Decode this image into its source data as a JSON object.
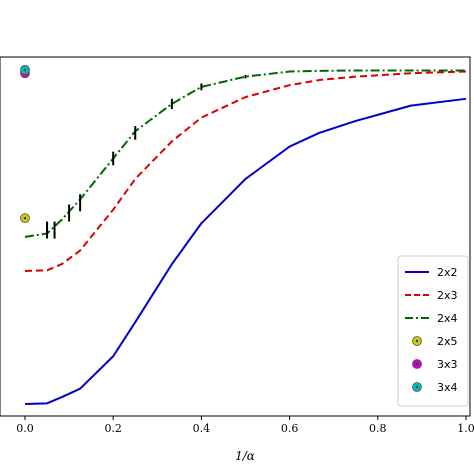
{
  "chart_data": {
    "type": "line",
    "xlabel": "1/α",
    "ylabel": "",
    "title": "",
    "xlim": [
      -0.03,
      1.0
    ],
    "ylim": [
      0,
      1.0
    ],
    "x_ticks": [
      0.0,
      0.2,
      0.4,
      0.6,
      0.8,
      1.0
    ],
    "x_tick_labels": [
      "0.0",
      "0.2",
      "0.4",
      "0.6",
      "0.8",
      "1.0"
    ],
    "legend_position": "lower-right",
    "series": [
      {
        "name": "2x2",
        "style": "solid",
        "color": "#0000cc",
        "x": [
          0.0,
          0.05,
          0.083,
          0.125,
          0.2,
          0.25,
          0.333,
          0.4,
          0.5,
          0.6,
          0.667,
          0.75,
          0.875,
          1.0
        ],
        "y": [
          0.0,
          0.002,
          0.02,
          0.045,
          0.14,
          0.24,
          0.41,
          0.53,
          0.66,
          0.755,
          0.795,
          0.83,
          0.875,
          0.895
        ]
      },
      {
        "name": "2x3",
        "style": "dashed",
        "color": "#dd0000",
        "x": [
          0.0,
          0.05,
          0.083,
          0.125,
          0.2,
          0.25,
          0.333,
          0.4,
          0.5,
          0.6,
          0.667,
          0.75,
          0.875,
          1.0
        ],
        "y": [
          0.39,
          0.392,
          0.41,
          0.45,
          0.57,
          0.66,
          0.77,
          0.84,
          0.9,
          0.935,
          0.95,
          0.96,
          0.97,
          0.975
        ]
      },
      {
        "name": "2x4",
        "style": "dashdot",
        "color": "#006600",
        "x": [
          0.0,
          0.05,
          0.083,
          0.125,
          0.2,
          0.25,
          0.333,
          0.4,
          0.5,
          0.6,
          0.667,
          0.75,
          0.875,
          1.0
        ],
        "y": [
          0.49,
          0.5,
          0.54,
          0.6,
          0.72,
          0.8,
          0.88,
          0.93,
          0.96,
          0.975,
          0.977,
          0.978,
          0.978,
          0.978
        ]
      }
    ],
    "error_bars": [
      {
        "x": 0.05,
        "y": 0.51,
        "yerr": 0.025
      },
      {
        "x": 0.067,
        "y": 0.51,
        "yerr": 0.025
      },
      {
        "x": 0.1,
        "y": 0.56,
        "yerr": 0.025
      },
      {
        "x": 0.125,
        "y": 0.59,
        "yerr": 0.025
      },
      {
        "x": 0.2,
        "y": 0.72,
        "yerr": 0.02
      },
      {
        "x": 0.25,
        "y": 0.795,
        "yerr": 0.02
      },
      {
        "x": 0.333,
        "y": 0.88,
        "yerr": 0.015
      },
      {
        "x": 0.4,
        "y": 0.93,
        "yerr": 0.01
      },
      {
        "x": 0.5,
        "y": 0.96,
        "yerr": 0.005
      }
    ],
    "points": [
      {
        "name": "2x5",
        "x": 0.0,
        "y": 0.545,
        "color": "#cccc00"
      },
      {
        "name": "3x3",
        "x": 0.0,
        "y": 0.97,
        "color": "#cc00cc"
      },
      {
        "name": "3x4",
        "x": 0.0,
        "y": 0.98,
        "color": "#00bbbb"
      }
    ]
  }
}
